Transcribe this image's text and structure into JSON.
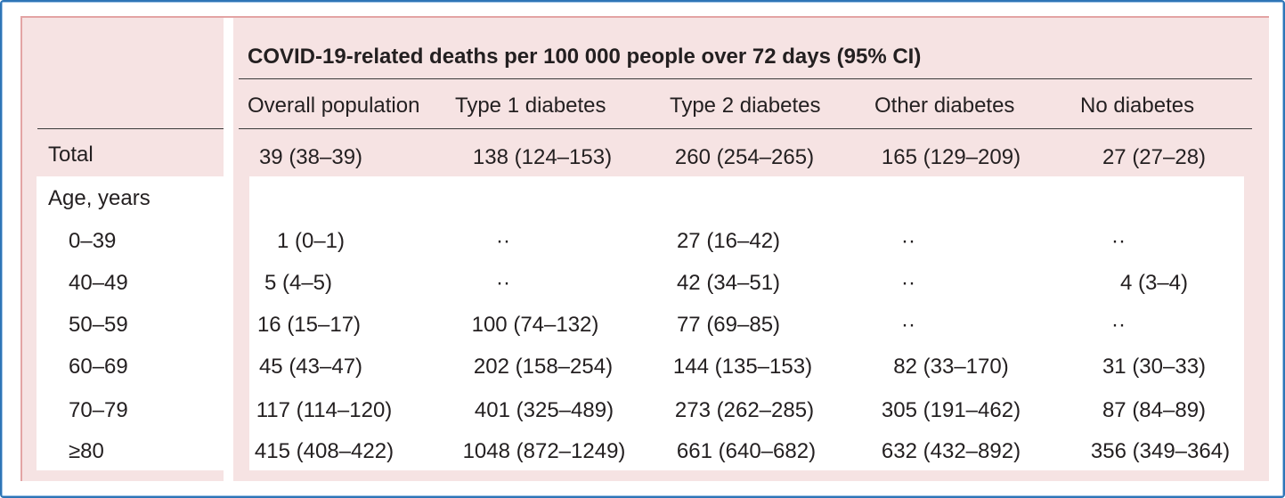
{
  "table": {
    "title": "COVID-19-related deaths per 100 000 people over 72 days (95% CI)",
    "columns": [
      "Overall population",
      "Type 1 diabetes",
      "Type 2 diabetes",
      "Other diabetes",
      "No diabetes"
    ],
    "total_row": {
      "label": "Total",
      "values": [
        "39 (38–39)",
        "138 (124–153)",
        "260 (254–265)",
        "165 (129–209)",
        "27 (27–28)"
      ]
    },
    "age_header": "Age, years",
    "age_rows": [
      {
        "label": "0–39",
        "values": [
          "1 (0–1)",
          "··",
          "27 (16–42)",
          "··",
          "··"
        ]
      },
      {
        "label": "40–49",
        "values": [
          "5 (4–5)",
          "··",
          "42 (34–51)",
          "··",
          "4 (3–4)"
        ]
      },
      {
        "label": "50–59",
        "values": [
          "16 (15–17)",
          "100 (74–132)",
          "77 (69–85)",
          "··",
          "··"
        ]
      },
      {
        "label": "60–69",
        "values": [
          "45 (43–47)",
          "202 (158–254)",
          "144 (135–153)",
          "82 (33–170)",
          "31 (30–33)"
        ]
      },
      {
        "label": "70–79",
        "values": [
          "117 (114–120)",
          "401 (325–489)",
          "273 (262–285)",
          "305 (191–462)",
          "87 (84–89)"
        ]
      },
      {
        "label": "≥80",
        "values": [
          "415 (408–422)",
          "1048 (872–1249)",
          "661 (640–682)",
          "632 (432–892)",
          "356 (349–364)"
        ]
      }
    ]
  }
}
